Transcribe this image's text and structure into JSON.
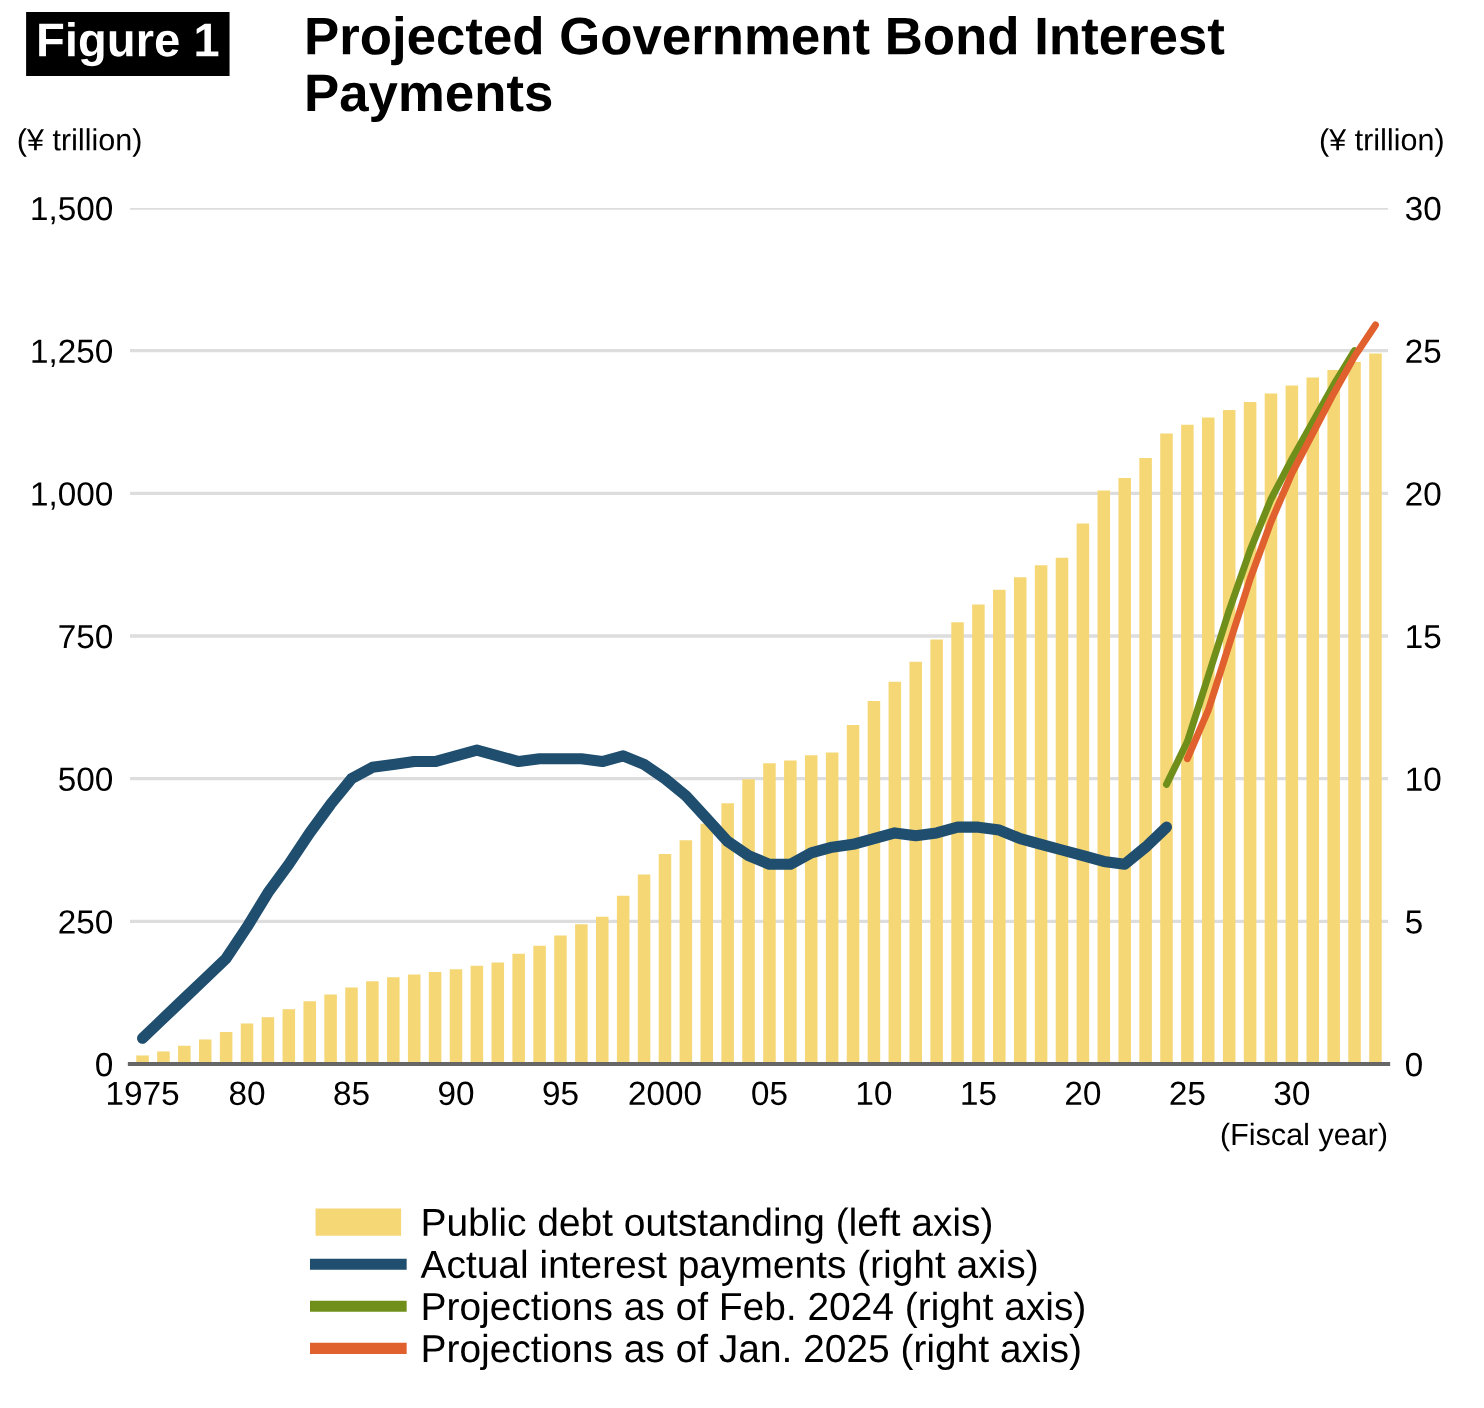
{
  "chart_data": {
    "type": "bar",
    "title": "Projected Government Bond Interest Payments",
    "annotations": [
      "Figure 1"
    ],
    "xlabel": "(Fiscal year)",
    "ylabel": "(¥ trillion)",
    "y2label": "(¥ trillion)",
    "x": [
      1975,
      1976,
      1977,
      1978,
      1979,
      1980,
      1981,
      1982,
      1983,
      1984,
      1985,
      1986,
      1987,
      1988,
      1989,
      1990,
      1991,
      1992,
      1993,
      1994,
      1995,
      1996,
      1997,
      1998,
      1999,
      2000,
      2001,
      2002,
      2003,
      2004,
      2005,
      2006,
      2007,
      2008,
      2009,
      2010,
      2011,
      2012,
      2013,
      2014,
      2015,
      2016,
      2017,
      2018,
      2019,
      2020,
      2021,
      2022,
      2023,
      2024,
      2025,
      2026,
      2027,
      2028,
      2029,
      2030,
      2031,
      2032,
      2033,
      2034
    ],
    "series": [
      {
        "name": "Public debt outstanding (left axis)",
        "color": "#f6d776",
        "values": [
          15,
          22,
          32,
          43,
          56,
          71,
          82,
          96,
          110,
          122,
          134,
          145,
          152,
          157,
          161,
          166,
          172,
          178,
          193,
          207,
          225,
          245,
          258,
          295,
          332,
          368,
          392,
          421,
          457,
          499,
          527,
          532,
          541,
          546,
          594,
          636,
          670,
          705,
          744,
          774,
          805,
          831,
          853,
          874,
          887,
          947,
          1005,
          1027,
          1062,
          1105,
          1120,
          1133,
          1146,
          1160,
          1175,
          1189,
          1203,
          1216,
          1230,
          1245
        ]
      },
      {
        "name": "Actual interest payments (right axis)",
        "type": "line",
        "axis": "y2",
        "color": "#1f4e6e",
        "x": [
          1975,
          1976,
          1977,
          1978,
          1979,
          1980,
          1981,
          1982,
          1983,
          1984,
          1985,
          1986,
          1987,
          1988,
          1989,
          1990,
          1991,
          1992,
          1993,
          1994,
          1995,
          1996,
          1997,
          1998,
          1999,
          2000,
          2001,
          2002,
          2003,
          2004,
          2005,
          2006,
          2007,
          2008,
          2009,
          2010,
          2011,
          2012,
          2013,
          2014,
          2015,
          2016,
          2017,
          2018,
          2019,
          2020,
          2021,
          2022,
          2023,
          2024
        ],
        "values": [
          0.9,
          1.6,
          2.3,
          3.0,
          3.7,
          4.8,
          6.0,
          7.0,
          8.1,
          9.1,
          10.0,
          10.4,
          10.5,
          10.6,
          10.6,
          10.8,
          11.0,
          10.8,
          10.6,
          10.7,
          10.7,
          10.7,
          10.6,
          10.8,
          10.5,
          10.0,
          9.4,
          8.6,
          7.8,
          7.3,
          7.0,
          7.0,
          7.4,
          7.6,
          7.7,
          7.9,
          8.1,
          8.0,
          8.1,
          8.3,
          8.3,
          8.2,
          7.9,
          7.7,
          7.5,
          7.3,
          7.1,
          7.0,
          7.6,
          8.3
        ]
      },
      {
        "name": "Projections as of Feb. 2024 (right axis)",
        "type": "line",
        "axis": "y2",
        "color": "#6f8f1a",
        "x": [
          2024,
          2025,
          2026,
          2027,
          2028,
          2029,
          2030,
          2031,
          2032,
          2033
        ],
        "values": [
          9.8,
          11.3,
          13.6,
          15.9,
          18.0,
          19.8,
          21.2,
          22.5,
          23.8,
          25.0
        ]
      },
      {
        "name": "Projections as of Jan. 2025 (right axis)",
        "type": "line",
        "axis": "y2",
        "color": "#e0602e",
        "x": [
          2025,
          2026,
          2027,
          2028,
          2029,
          2030,
          2031,
          2032,
          2033,
          2034
        ],
        "values": [
          10.7,
          12.4,
          14.7,
          17.0,
          19.0,
          20.7,
          22.1,
          23.5,
          24.8,
          25.9
        ]
      }
    ],
    "xlim": [
      1974.4,
      2034.6
    ],
    "xticks": [
      {
        "value": 1975,
        "label": "1975"
      },
      {
        "value": 1980,
        "label": "80"
      },
      {
        "value": 1985,
        "label": "85"
      },
      {
        "value": 1990,
        "label": "90"
      },
      {
        "value": 1995,
        "label": "95"
      },
      {
        "value": 2000,
        "label": "2000"
      },
      {
        "value": 2005,
        "label": "05"
      },
      {
        "value": 2010,
        "label": "10"
      },
      {
        "value": 2015,
        "label": "15"
      },
      {
        "value": 2020,
        "label": "20"
      },
      {
        "value": 2025,
        "label": "25"
      },
      {
        "value": 2030,
        "label": "30"
      }
    ],
    "ylim": [
      0,
      1500
    ],
    "yticks": [
      {
        "value": 0,
        "label": "0"
      },
      {
        "value": 250,
        "label": "250"
      },
      {
        "value": 500,
        "label": "500"
      },
      {
        "value": 750,
        "label": "750"
      },
      {
        "value": 1000,
        "label": "1,000"
      },
      {
        "value": 1250,
        "label": "1,250"
      },
      {
        "value": 1500,
        "label": "1,500"
      }
    ],
    "y2lim": [
      0,
      30
    ],
    "y2ticks": [
      0,
      5,
      10,
      15,
      20,
      25,
      30
    ],
    "grid": "y",
    "legend": "bottom"
  }
}
